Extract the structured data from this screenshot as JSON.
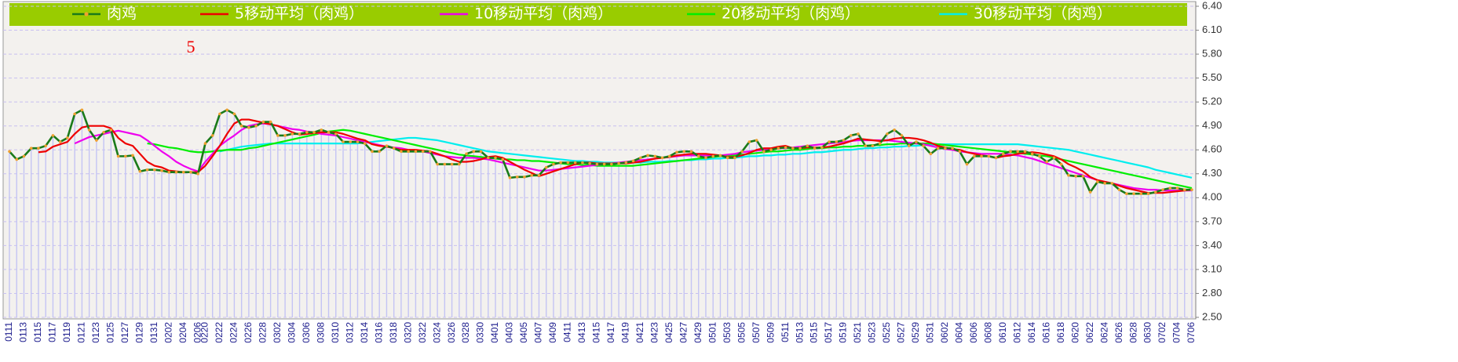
{
  "chart_data": {
    "type": "line",
    "annotations": [
      "5"
    ],
    "annotation_color": "#ee0000",
    "grid": true,
    "legend": "top",
    "marker_color": "#f0a030",
    "ylim": [
      2.5,
      6.4
    ],
    "yticks": [
      {
        "value": 2.5,
        "label": "2.50"
      },
      {
        "value": 2.8,
        "label": "2.80"
      },
      {
        "value": 3.1,
        "label": "3.10"
      },
      {
        "value": 3.4,
        "label": "3.40"
      },
      {
        "value": 3.7,
        "label": "3.70"
      },
      {
        "value": 4.0,
        "label": "4.00"
      },
      {
        "value": 4.3,
        "label": "4.30"
      },
      {
        "value": 4.6,
        "label": "4.60"
      },
      {
        "value": 4.9,
        "label": "4.90"
      },
      {
        "value": 5.2,
        "label": "5.20"
      },
      {
        "value": 5.5,
        "label": "5.50"
      },
      {
        "value": 5.8,
        "label": "5.80"
      },
      {
        "value": 6.1,
        "label": "6.10"
      },
      {
        "value": 6.4,
        "label": "6.40"
      }
    ],
    "categories": [
      "0111",
      null,
      "0113",
      null,
      "0115",
      null,
      "0117",
      null,
      "0119",
      null,
      "0121",
      null,
      "0123",
      null,
      "0125",
      null,
      "0127",
      null,
      "0129",
      null,
      "0131",
      null,
      "0202",
      null,
      "0204",
      null,
      "0206",
      "0220",
      null,
      "0222",
      null,
      "0224",
      null,
      "0226",
      null,
      "0228",
      null,
      "0302",
      null,
      "0304",
      null,
      "0306",
      null,
      "0308",
      null,
      "0310",
      null,
      "0312",
      null,
      "0314",
      null,
      "0316",
      null,
      "0318",
      null,
      "0320",
      null,
      "0322",
      null,
      "0324",
      null,
      "0326",
      null,
      "0328",
      null,
      "0330",
      null,
      "0401",
      null,
      "0403",
      null,
      "0405",
      null,
      "0407",
      null,
      "0409",
      null,
      "0411",
      null,
      "0413",
      null,
      "0415",
      null,
      "0417",
      null,
      "0419",
      null,
      "0421",
      null,
      "0423",
      null,
      "0425",
      null,
      "0427",
      null,
      "0429",
      null,
      "0501",
      null,
      "0503",
      null,
      "0505",
      null,
      "0507",
      null,
      "0509",
      null,
      "0511",
      null,
      "0513",
      null,
      "0515",
      null,
      "0517",
      null,
      "0519",
      null,
      "0521",
      null,
      "0523",
      null,
      "0525",
      null,
      "0527",
      null,
      "0529",
      null,
      "0531",
      null,
      "0602",
      null,
      "0604",
      null,
      "0606",
      null,
      "0608",
      null,
      "0610",
      null,
      "0612",
      null,
      "0614",
      null,
      "0616",
      null,
      "0618",
      null,
      "0620",
      null,
      "0622",
      null,
      "0624",
      null,
      "0626",
      null,
      "0628",
      null,
      "0630",
      null,
      "0702",
      null,
      "0704",
      null,
      "0706"
    ],
    "series": [
      {
        "name": "肉鸡",
        "color": "#1a7a1a",
        "values": [
          4.58,
          4.48,
          4.52,
          4.62,
          4.62,
          4.65,
          4.78,
          4.7,
          4.75,
          5.05,
          5.1,
          4.85,
          4.72,
          4.82,
          4.85,
          4.52,
          4.52,
          4.53,
          4.33,
          4.35,
          4.35,
          4.34,
          4.32,
          4.32,
          4.32,
          4.32,
          4.3,
          4.68,
          4.78,
          5.05,
          5.1,
          5.05,
          4.9,
          4.88,
          4.9,
          4.95,
          4.95,
          4.78,
          4.78,
          4.8,
          4.8,
          4.82,
          4.82,
          4.85,
          4.82,
          4.8,
          4.7,
          4.7,
          4.7,
          4.68,
          4.58,
          4.58,
          4.65,
          4.62,
          4.58,
          4.58,
          4.58,
          4.58,
          4.58,
          4.42,
          4.42,
          4.42,
          4.42,
          4.55,
          4.58,
          4.58,
          4.5,
          4.5,
          4.48,
          4.25,
          4.26,
          4.26,
          4.28,
          4.28,
          4.38,
          4.42,
          4.44,
          4.44,
          4.44,
          4.44,
          4.43,
          4.42,
          4.42,
          4.42,
          4.43,
          4.44,
          4.46,
          4.5,
          4.53,
          4.52,
          4.5,
          4.52,
          4.57,
          4.58,
          4.58,
          4.52,
          4.5,
          4.52,
          4.53,
          4.5,
          4.5,
          4.58,
          4.7,
          4.72,
          4.58,
          4.6,
          4.62,
          4.63,
          4.62,
          4.62,
          4.65,
          4.62,
          4.63,
          4.7,
          4.7,
          4.72,
          4.78,
          4.8,
          4.65,
          4.65,
          4.68,
          4.8,
          4.85,
          4.78,
          4.65,
          4.7,
          4.65,
          4.55,
          4.62,
          4.62,
          4.62,
          4.58,
          4.42,
          4.52,
          4.52,
          4.52,
          4.5,
          4.55,
          4.58,
          4.58,
          4.58,
          4.55,
          4.52,
          4.45,
          4.5,
          4.42,
          4.28,
          4.27,
          4.27,
          4.07,
          4.2,
          4.18,
          4.18,
          4.1,
          4.05,
          4.05,
          4.05,
          4.05,
          4.07,
          4.1,
          4.12,
          4.12,
          4.1,
          4.1
        ]
      },
      {
        "name": "5移动平均（肉鸡）",
        "color": "#ee0000",
        "values": [
          null,
          null,
          null,
          null,
          4.57,
          4.58,
          4.64,
          4.67,
          4.7,
          4.8,
          4.88,
          4.9,
          4.9,
          4.9,
          4.87,
          4.75,
          4.68,
          4.65,
          4.55,
          4.45,
          4.4,
          4.38,
          4.34,
          4.33,
          4.32,
          4.32,
          4.32,
          4.4,
          4.52,
          4.65,
          4.8,
          4.93,
          4.98,
          4.98,
          4.96,
          4.94,
          4.92,
          4.9,
          4.86,
          4.82,
          4.79,
          4.8,
          4.81,
          4.82,
          4.82,
          4.82,
          4.8,
          4.77,
          4.74,
          4.72,
          4.67,
          4.65,
          4.64,
          4.62,
          4.6,
          4.6,
          4.6,
          4.59,
          4.58,
          4.55,
          4.52,
          4.48,
          4.45,
          4.45,
          4.46,
          4.48,
          4.51,
          4.52,
          4.5,
          4.45,
          4.4,
          4.35,
          4.31,
          4.27,
          4.3,
          4.33,
          4.36,
          4.39,
          4.42,
          4.44,
          4.44,
          4.43,
          4.43,
          4.43,
          4.43,
          4.43,
          4.44,
          4.45,
          4.47,
          4.49,
          4.5,
          4.51,
          4.53,
          4.54,
          4.55,
          4.55,
          4.55,
          4.54,
          4.53,
          4.51,
          4.51,
          4.53,
          4.56,
          4.6,
          4.62,
          4.62,
          4.64,
          4.65,
          4.62,
          4.62,
          4.63,
          4.63,
          4.63,
          4.64,
          4.66,
          4.68,
          4.71,
          4.74,
          4.73,
          4.72,
          4.71,
          4.72,
          4.74,
          4.75,
          4.75,
          4.74,
          4.72,
          4.69,
          4.65,
          4.63,
          4.61,
          4.6,
          4.57,
          4.55,
          4.53,
          4.52,
          4.5,
          4.52,
          4.53,
          4.55,
          4.56,
          4.57,
          4.56,
          4.54,
          4.52,
          4.48,
          4.42,
          4.38,
          4.33,
          4.26,
          4.22,
          4.2,
          4.18,
          4.15,
          4.12,
          4.1,
          4.08,
          4.06,
          4.06,
          4.06,
          4.07,
          4.08,
          4.09,
          4.1
        ]
      },
      {
        "name": "10移动平均（肉鸡）",
        "color": "#ee00ee",
        "values": [
          null,
          null,
          null,
          null,
          null,
          null,
          null,
          null,
          null,
          4.68,
          4.72,
          4.76,
          4.78,
          4.8,
          4.82,
          4.84,
          4.82,
          4.8,
          4.78,
          4.72,
          4.65,
          4.58,
          4.52,
          4.45,
          4.4,
          4.36,
          4.33,
          4.45,
          4.55,
          4.65,
          4.72,
          4.78,
          4.85,
          4.9,
          4.92,
          4.93,
          4.92,
          4.9,
          4.88,
          4.86,
          4.85,
          4.83,
          4.82,
          4.8,
          4.79,
          4.78,
          4.76,
          4.74,
          4.72,
          4.7,
          4.68,
          4.66,
          4.64,
          4.63,
          4.62,
          4.6,
          4.59,
          4.58,
          4.56,
          4.54,
          4.52,
          4.51,
          4.5,
          4.5,
          4.5,
          4.49,
          4.48,
          4.46,
          4.44,
          4.42,
          4.4,
          4.38,
          4.36,
          4.34,
          4.34,
          4.35,
          4.36,
          4.37,
          4.38,
          4.39,
          4.4,
          4.41,
          4.42,
          4.43,
          4.44,
          4.45,
          4.46,
          4.47,
          4.48,
          4.49,
          4.5,
          4.51,
          4.52,
          4.53,
          4.53,
          4.53,
          4.53,
          4.53,
          4.53,
          4.54,
          4.55,
          4.57,
          4.58,
          4.59,
          4.6,
          4.61,
          4.62,
          4.62,
          4.63,
          4.64,
          4.65,
          4.66,
          4.67,
          4.68,
          4.69,
          4.7,
          4.71,
          4.72,
          4.72,
          4.72,
          4.72,
          4.72,
          4.71,
          4.7,
          4.69,
          4.68,
          4.67,
          4.65,
          4.63,
          4.61,
          4.6,
          4.58,
          4.57,
          4.56,
          4.55,
          4.55,
          4.55,
          4.55,
          4.54,
          4.53,
          4.51,
          4.49,
          4.46,
          4.43,
          4.4,
          4.37,
          4.34,
          4.31,
          4.28,
          4.25,
          4.22,
          4.2,
          4.18,
          4.16,
          4.14,
          4.12,
          4.11,
          4.1,
          4.1,
          4.09,
          4.09,
          4.09,
          4.09,
          4.09
        ]
      },
      {
        "name": "20移动平均（肉鸡）",
        "color": "#00ee00",
        "values": [
          null,
          null,
          null,
          null,
          null,
          null,
          null,
          null,
          null,
          null,
          null,
          null,
          null,
          null,
          null,
          null,
          null,
          null,
          null,
          4.68,
          4.67,
          4.65,
          4.63,
          4.62,
          4.6,
          4.58,
          4.57,
          4.57,
          4.58,
          4.59,
          4.6,
          4.6,
          4.6,
          4.62,
          4.63,
          4.65,
          4.67,
          4.69,
          4.71,
          4.73,
          4.75,
          4.77,
          4.79,
          4.81,
          4.83,
          4.84,
          4.85,
          4.84,
          4.82,
          4.8,
          4.78,
          4.76,
          4.74,
          4.72,
          4.7,
          4.68,
          4.66,
          4.64,
          4.62,
          4.6,
          4.58,
          4.56,
          4.54,
          4.53,
          4.52,
          4.51,
          4.5,
          4.49,
          4.48,
          4.48,
          4.47,
          4.47,
          4.46,
          4.46,
          4.45,
          4.44,
          4.43,
          4.42,
          4.42,
          4.41,
          4.41,
          4.4,
          4.4,
          4.4,
          4.4,
          4.4,
          4.4,
          4.41,
          4.42,
          4.43,
          4.44,
          4.45,
          4.46,
          4.47,
          4.48,
          4.49,
          4.5,
          4.51,
          4.52,
          4.53,
          4.53,
          4.54,
          4.55,
          4.56,
          4.57,
          4.58,
          4.58,
          4.59,
          4.6,
          4.6,
          4.61,
          4.62,
          4.62,
          4.63,
          4.63,
          4.64,
          4.64,
          4.65,
          4.65,
          4.66,
          4.66,
          4.67,
          4.67,
          4.68,
          4.68,
          4.68,
          4.68,
          4.68,
          4.67,
          4.66,
          4.65,
          4.64,
          4.63,
          4.62,
          4.61,
          4.6,
          4.59,
          4.58,
          4.57,
          4.56,
          4.55,
          4.54,
          4.53,
          4.52,
          4.5,
          4.48,
          4.46,
          4.44,
          4.42,
          4.4,
          4.38,
          4.36,
          4.34,
          4.32,
          4.3,
          4.28,
          4.26,
          4.24,
          4.22,
          4.2,
          4.18,
          4.16,
          4.14,
          4.12
        ]
      },
      {
        "name": "30移动平均（肉鸡）",
        "color": "#00eeee",
        "values": [
          null,
          null,
          null,
          null,
          null,
          null,
          null,
          null,
          null,
          null,
          null,
          null,
          null,
          null,
          null,
          null,
          null,
          null,
          null,
          null,
          null,
          null,
          null,
          null,
          null,
          null,
          null,
          null,
          null,
          4.58,
          4.6,
          4.62,
          4.64,
          4.65,
          4.66,
          4.67,
          4.68,
          4.68,
          4.68,
          4.68,
          4.68,
          4.68,
          4.68,
          4.68,
          4.68,
          4.68,
          4.68,
          4.68,
          4.68,
          4.69,
          4.7,
          4.71,
          4.72,
          4.73,
          4.74,
          4.75,
          4.75,
          4.74,
          4.73,
          4.72,
          4.7,
          4.68,
          4.66,
          4.64,
          4.62,
          4.6,
          4.58,
          4.57,
          4.56,
          4.55,
          4.54,
          4.53,
          4.52,
          4.51,
          4.5,
          4.49,
          4.48,
          4.47,
          4.46,
          4.46,
          4.45,
          4.45,
          4.44,
          4.44,
          4.44,
          4.44,
          4.44,
          4.44,
          4.45,
          4.45,
          4.45,
          4.46,
          4.46,
          4.47,
          4.47,
          4.48,
          4.48,
          4.49,
          4.49,
          4.5,
          4.5,
          4.51,
          4.52,
          4.52,
          4.53,
          4.53,
          4.54,
          4.54,
          4.55,
          4.55,
          4.56,
          4.57,
          4.57,
          4.58,
          4.59,
          4.6,
          4.6,
          4.61,
          4.62,
          4.62,
          4.63,
          4.63,
          4.64,
          4.64,
          4.65,
          4.65,
          4.66,
          4.66,
          4.67,
          4.67,
          4.67,
          4.67,
          4.67,
          4.67,
          4.67,
          4.67,
          4.67,
          4.67,
          4.67,
          4.67,
          4.66,
          4.65,
          4.64,
          4.63,
          4.62,
          4.61,
          4.6,
          4.58,
          4.56,
          4.54,
          4.52,
          4.5,
          4.48,
          4.46,
          4.44,
          4.42,
          4.4,
          4.38,
          4.35,
          4.33,
          4.31,
          4.29,
          4.27,
          4.25
        ]
      }
    ]
  }
}
